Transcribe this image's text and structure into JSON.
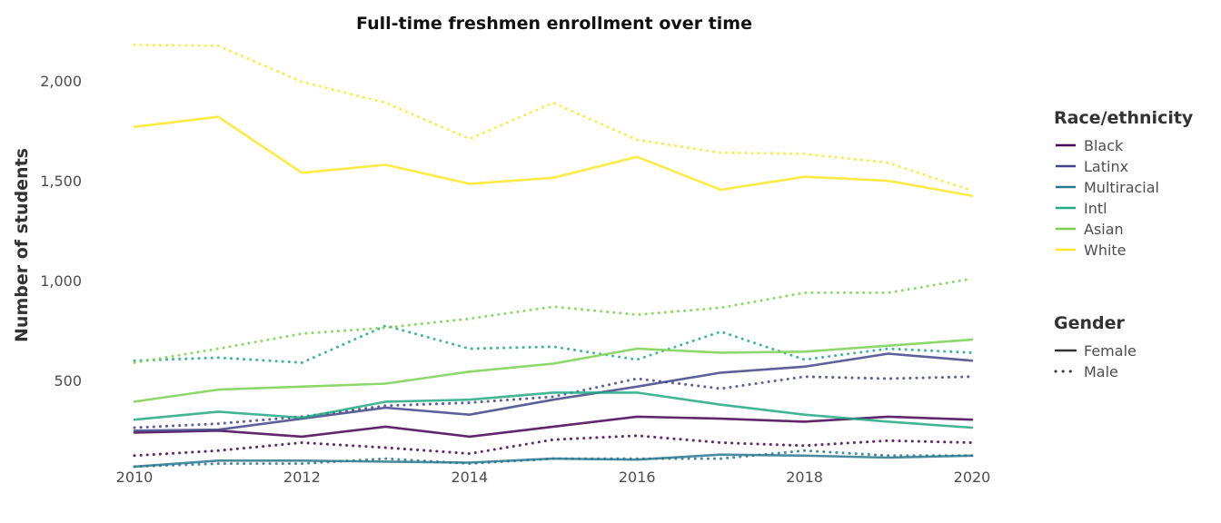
{
  "chart_data": {
    "type": "line",
    "title": "Full-time freshmen enrollment over time",
    "xlabel": "",
    "ylabel": "Number of students",
    "xlim": [
      2010,
      2020
    ],
    "ylim": [
      65,
      2200
    ],
    "x_ticks": [
      2010,
      2012,
      2014,
      2016,
      2018,
      2020
    ],
    "x_tick_labels": [
      "2010",
      "2012",
      "2014",
      "2016",
      "2018",
      "2020"
    ],
    "y_ticks": [
      500,
      1000,
      1500,
      2000
    ],
    "y_tick_labels": [
      "500",
      "1,000",
      "1,500",
      "2,000"
    ],
    "grid": false,
    "x": [
      2010,
      2011,
      2012,
      2013,
      2014,
      2015,
      2016,
      2017,
      2018,
      2019,
      2020
    ],
    "legend_placement": "right",
    "legend_race": {
      "title": "Race/ethnicity",
      "items": [
        {
          "name": "Black",
          "color": "#440154"
        },
        {
          "name": "Latinx",
          "color": "#414487"
        },
        {
          "name": "Multiracial",
          "color": "#2a788e"
        },
        {
          "name": "Intl",
          "color": "#22a884"
        },
        {
          "name": "Asian",
          "color": "#7ad151"
        },
        {
          "name": "White",
          "color": "#fde725"
        }
      ]
    },
    "legend_gender": {
      "title": "Gender",
      "items": [
        {
          "name": "Female",
          "style": "solid"
        },
        {
          "name": "Male",
          "style": "dotted"
        }
      ]
    },
    "series": [
      {
        "name": "Black",
        "gender": "Female",
        "values": [
          240,
          250,
          220,
          270,
          220,
          270,
          320,
          310,
          295,
          320,
          305
        ]
      },
      {
        "name": "Black",
        "gender": "Male",
        "values": [
          125,
          150,
          190,
          165,
          135,
          205,
          225,
          190,
          175,
          200,
          190
        ]
      },
      {
        "name": "Latinx",
        "gender": "Female",
        "values": [
          250,
          255,
          310,
          365,
          330,
          405,
          470,
          540,
          570,
          635,
          600
        ]
      },
      {
        "name": "Latinx",
        "gender": "Male",
        "values": [
          265,
          285,
          320,
          375,
          390,
          420,
          510,
          460,
          520,
          510,
          520
        ]
      },
      {
        "name": "Multiracial",
        "gender": "Female",
        "values": [
          70,
          100,
          100,
          95,
          90,
          110,
          105,
          130,
          125,
          115,
          125
        ]
      },
      {
        "name": "Multiracial",
        "gender": "Male",
        "values": [
          70,
          85,
          85,
          110,
          85,
          110,
          110,
          110,
          150,
          125,
          125
        ]
      },
      {
        "name": "Intl",
        "gender": "Female",
        "values": [
          305,
          345,
          315,
          395,
          405,
          440,
          440,
          380,
          330,
          295,
          265
        ]
      },
      {
        "name": "Intl",
        "gender": "Male",
        "values": [
          600,
          615,
          590,
          775,
          660,
          670,
          605,
          745,
          605,
          660,
          640
        ]
      },
      {
        "name": "Asian",
        "gender": "Female",
        "values": [
          395,
          455,
          470,
          485,
          545,
          585,
          660,
          640,
          645,
          675,
          705
        ]
      },
      {
        "name": "Asian",
        "gender": "Male",
        "values": [
          590,
          660,
          735,
          765,
          810,
          870,
          830,
          865,
          940,
          940,
          1010
        ]
      },
      {
        "name": "White",
        "gender": "Female",
        "values": [
          1770,
          1820,
          1540,
          1580,
          1485,
          1515,
          1620,
          1455,
          1520,
          1500,
          1425
        ]
      },
      {
        "name": "White",
        "gender": "Male",
        "values": [
          2180,
          2175,
          1995,
          1890,
          1710,
          1890,
          1705,
          1640,
          1635,
          1590,
          1450
        ]
      }
    ]
  }
}
